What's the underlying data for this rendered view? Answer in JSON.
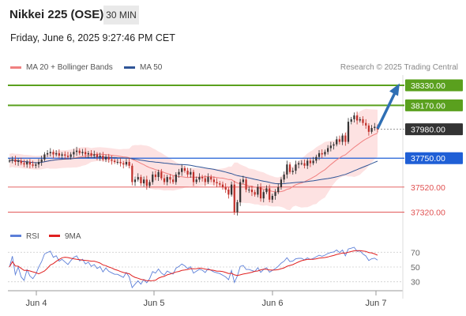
{
  "header": {
    "title": "Nikkei 225 (OSE)",
    "timeframe": "30 MIN",
    "datetime": "Friday, June 6, 2025 9:27:46 PM CET"
  },
  "legend": {
    "ma20_label": "MA 20 + Bollinger Bands",
    "ma50_label": "MA 50",
    "research": "Research © 2025 Trading Central",
    "rsi_label": "RSI",
    "ma9_label": "9MA"
  },
  "colors": {
    "ma20": "#f08080",
    "ma50": "#2f5597",
    "resistance": "#5aa01e",
    "support": "#e05050",
    "pivot": "#1f5fd6",
    "price_tag": "#333333",
    "candle_up": "#333333",
    "candle_down": "#c0302a",
    "rsi": "#5c7fd8",
    "rsi_ma": "#e02020",
    "arrow": "#2f6fb4"
  },
  "chart_data": {
    "type": "candlestick",
    "x_ticks": [
      "Jun 4",
      "Jun 5",
      "Jun 6",
      "Jun 7"
    ],
    "ylim": [
      37280,
      38380
    ],
    "levels": [
      {
        "value": "38330.00",
        "kind": "resistance"
      },
      {
        "value": "38170.00",
        "kind": "resistance"
      },
      {
        "value": "37980.00",
        "kind": "last"
      },
      {
        "value": "37750.00",
        "kind": "pivot"
      },
      {
        "value": "37520.00",
        "kind": "support"
      },
      {
        "value": "37320.00",
        "kind": "support"
      }
    ],
    "close": [
      37730,
      37740,
      37720,
      37730,
      37710,
      37700,
      37720,
      37700,
      37690,
      37700,
      37720,
      37740,
      37780,
      37790,
      37800,
      37780,
      37790,
      37770,
      37780,
      37770,
      37760,
      37780,
      37800,
      37810,
      37790,
      37800,
      37780,
      37790,
      37770,
      37780,
      37760,
      37770,
      37740,
      37760,
      37740,
      37730,
      37720,
      37720,
      37710,
      37700,
      37720,
      37690,
      37560,
      37580,
      37600,
      37550,
      37580,
      37530,
      37560,
      37620,
      37600,
      37640,
      37590,
      37560,
      37600,
      37580,
      37560,
      37620,
      37640,
      37670,
      37650,
      37620,
      37640,
      37560,
      37580,
      37600,
      37590,
      37560,
      37600,
      37580,
      37560,
      37550,
      37540,
      37520,
      37500,
      37460,
      37540,
      37320,
      37400,
      37560,
      37580,
      37500,
      37500,
      37480,
      37460,
      37520,
      37430,
      37480,
      37510,
      37420,
      37450,
      37480,
      37520,
      37580,
      37620,
      37700,
      37640,
      37650,
      37700,
      37710,
      37710,
      37690,
      37730,
      37710,
      37730,
      37760,
      37790,
      37780,
      37800,
      37830,
      37850,
      37860,
      37900,
      37880,
      37930,
      37880,
      38040,
      38060,
      38090,
      38050,
      38060,
      38030,
      38010,
      37960,
      37990,
      38000,
      37980
    ],
    "rsi_ticks": [
      70,
      50,
      30
    ],
    "rsi_ylim": [
      20,
      80
    ]
  }
}
